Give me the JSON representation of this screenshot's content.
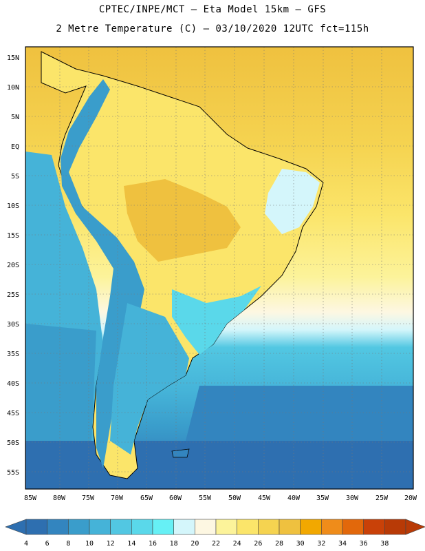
{
  "header": {
    "line1": "CPTEC/INPE/MCT –  Eta Model 15km – GFS",
    "line2": "2 Metre Temperature (C) – 03/10/2020 12UTC fct=115h"
  },
  "map": {
    "lon_labels": [
      "85W",
      "80W",
      "75W",
      "70W",
      "65W",
      "60W",
      "55W",
      "50W",
      "45W",
      "40W",
      "35W",
      "30W",
      "25W",
      "20W"
    ],
    "lat_labels": [
      "15N",
      "10N",
      "5N",
      "EQ",
      "5S",
      "10S",
      "15S",
      "20S",
      "25S",
      "30S",
      "35S",
      "40S",
      "45S",
      "50S",
      "55S"
    ],
    "field": "2 Metre Temperature",
    "units": "C"
  },
  "colorbar": {
    "ticks": [
      "4",
      "6",
      "8",
      "10",
      "12",
      "14",
      "16",
      "18",
      "20",
      "22",
      "24",
      "26",
      "28",
      "30",
      "32",
      "34",
      "36",
      "38"
    ],
    "colors": [
      "#2e6fb0",
      "#3385bf",
      "#3a9dcb",
      "#45b3d8",
      "#52c7e2",
      "#5ad8ea",
      "#66f0f5",
      "#d4f6fb",
      "#fdf7e2",
      "#fcf39a",
      "#fbe56a",
      "#f5d350",
      "#efc13f",
      "#f2a800",
      "#ef8c1a",
      "#e2680b",
      "#c94108",
      "#b83a06"
    ]
  }
}
